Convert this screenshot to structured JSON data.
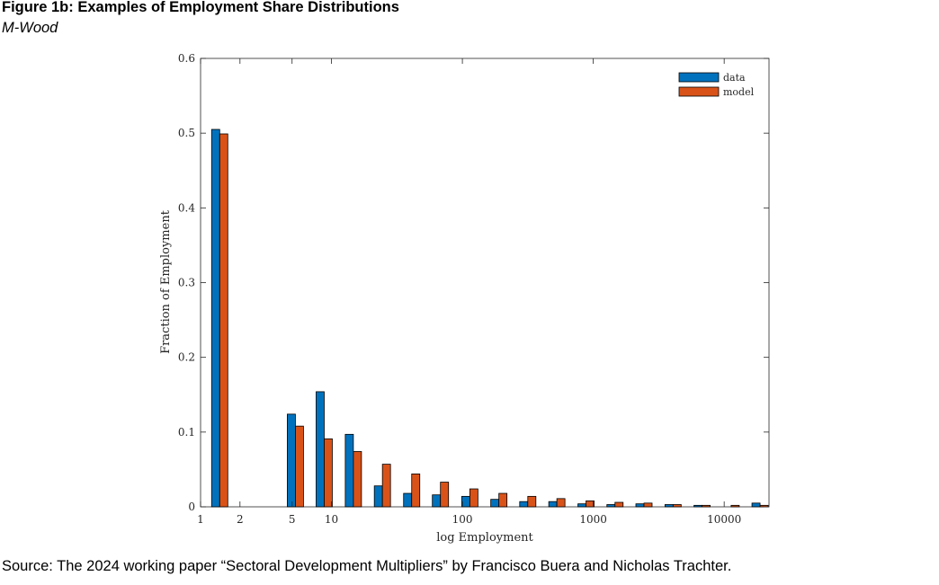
{
  "figure": {
    "title": "Figure 1b: Examples of Employment Share Distributions",
    "subtitle": "M-Wood",
    "source": "Source: The 2024 working paper “Sectoral Development Multipliers” by Francisco Buera and Nicholas Trachter."
  },
  "chart_data": {
    "type": "bar",
    "xlabel": "log Employment",
    "ylabel": "Fraction of Employment",
    "x_scale": "log",
    "xlim": [
      1,
      22000
    ],
    "ylim": [
      0,
      0.6
    ],
    "x_ticks": [
      {
        "value": 1,
        "label": "1"
      },
      {
        "value": 2,
        "label": "2"
      },
      {
        "value": 5,
        "label": "5"
      },
      {
        "value": 10,
        "label": "10"
      },
      {
        "value": 100,
        "label": "100"
      },
      {
        "value": 1000,
        "label": "1000"
      },
      {
        "value": 10000,
        "label": "10000"
      }
    ],
    "y_ticks": [
      {
        "value": 0,
        "label": "0"
      },
      {
        "value": 0.1,
        "label": "0.1"
      },
      {
        "value": 0.2,
        "label": "0.2"
      },
      {
        "value": 0.3,
        "label": "0.3"
      },
      {
        "value": 0.4,
        "label": "0.4"
      },
      {
        "value": 0.5,
        "label": "0.5"
      },
      {
        "value": 0.6,
        "label": "0.6"
      }
    ],
    "grid": false,
    "legend_position": "top-right",
    "bin_centers": [
      1.4,
      3.2,
      5.3,
      8.8,
      14.7,
      24.5,
      41,
      68,
      114,
      190,
      316,
      527,
      880,
      1465,
      2440,
      4070,
      6780,
      11300,
      18800
    ],
    "series": [
      {
        "name": "data",
        "color": "#0072BD",
        "values": [
          0.505,
          0,
          0.124,
          0.154,
          0.097,
          0.028,
          0.018,
          0.016,
          0.014,
          0.01,
          0.007,
          0.007,
          0.004,
          0.003,
          0.004,
          0.003,
          0.002,
          0,
          0.005
        ]
      },
      {
        "name": "model",
        "color": "#D95319",
        "values": [
          0.499,
          0,
          0.108,
          0.091,
          0.074,
          0.057,
          0.044,
          0.033,
          0.024,
          0.018,
          0.014,
          0.011,
          0.008,
          0.006,
          0.005,
          0.003,
          0.002,
          0.002,
          0.002
        ]
      }
    ]
  }
}
